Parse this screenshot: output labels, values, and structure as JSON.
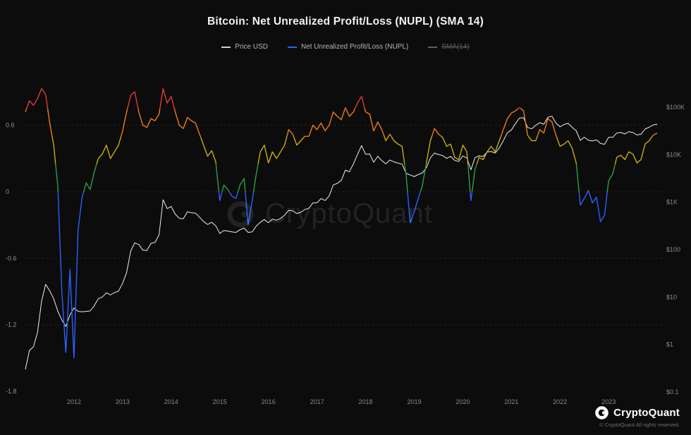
{
  "title": "Bitcoin: Net Unrealized Profit/Loss (NUPL) (SMA 14)",
  "legend": {
    "items": [
      {
        "label": "Price USD",
        "color": "#cfcfcf",
        "disabled": false
      },
      {
        "label": "Net Unrealized Profit/Loss (NUPL)",
        "color": "#2962ff",
        "disabled": false
      },
      {
        "label": "SMA(14)",
        "color": "#5f5f5f",
        "disabled": true
      }
    ]
  },
  "watermark": {
    "text": "CryptoQuant"
  },
  "brand": {
    "name": "CryptoQuant",
    "copyright": "© CryptoQuant All rights reserved."
  },
  "chart_data": {
    "type": "line",
    "title": "Bitcoin: Net Unrealized Profit/Loss (NUPL) (SMA 14)",
    "x_range": [
      2011.0,
      2024.1
    ],
    "x_ticks": [
      2012,
      2013,
      2014,
      2015,
      2016,
      2017,
      2018,
      2019,
      2020,
      2021,
      2022,
      2023
    ],
    "left_axis": {
      "range": [
        -1.8,
        1.1
      ],
      "gridlines": [
        0.6,
        0,
        -0.6,
        -1.2
      ],
      "ticks": [
        {
          "v": 0.6,
          "label": "0.6"
        },
        {
          "v": 0,
          "label": "0"
        },
        {
          "v": -0.6,
          "label": "-0.6"
        },
        {
          "v": -1.2,
          "label": "-1.2"
        },
        {
          "v": -1.8,
          "label": "-1.8"
        }
      ]
    },
    "right_axis": {
      "log": true,
      "ticks": [
        {
          "v": 100000,
          "label": "$100K"
        },
        {
          "v": 10000,
          "label": "$10K"
        },
        {
          "v": 1000,
          "label": "$1K"
        },
        {
          "v": 100,
          "label": "$100"
        },
        {
          "v": 10,
          "label": "$10"
        },
        {
          "v": 1,
          "label": "$1"
        },
        {
          "v": 0.1,
          "label": "$0.1"
        }
      ]
    },
    "series": [
      {
        "name": "Price USD",
        "axis": "right",
        "color": "#eeeeee",
        "x_start": 2011.0,
        "x_step": 0.0833333,
        "values": [
          0.3,
          0.75,
          0.9,
          1.8,
          8.2,
          18.5,
          13.5,
          9.2,
          5.0,
          3.3,
          2.4,
          4.2,
          5.9,
          5.0,
          4.9,
          5.0,
          5.1,
          6.6,
          9.2,
          10.0,
          12.3,
          11.1,
          12.4,
          13.4,
          19.5,
          33,
          93,
          139,
          128,
          97,
          96,
          135,
          141,
          204,
          1120,
          732,
          805,
          560,
          455,
          445,
          625,
          598,
          585,
          478,
          388,
          338,
          375,
          318,
          218,
          252,
          245,
          236,
          230,
          262,
          284,
          230,
          236,
          312,
          377,
          430,
          368,
          437,
          416,
          452,
          531,
          672,
          655,
          574,
          610,
          700,
          743,
          963,
          966,
          1190,
          1080,
          1350,
          2300,
          2480,
          2870,
          4700,
          4340,
          6450,
          10000,
          15500,
          10200,
          10300,
          6930,
          9240,
          7490,
          6400,
          7730,
          7030,
          6620,
          6320,
          4020,
          3740,
          3440,
          3820,
          4100,
          5320,
          8560,
          10800,
          10080,
          9590,
          8310,
          9150,
          7550,
          7190,
          9350,
          8550,
          4800,
          8620,
          9450,
          9140,
          11350,
          11650,
          10780,
          13800,
          19700,
          29000,
          33100,
          45200,
          58800,
          60000,
          37300,
          35000,
          41500,
          47100,
          43800,
          61300,
          64400,
          46200,
          38500,
          43200,
          45500,
          37650,
          31800,
          19900,
          23300,
          20050,
          19400,
          20500,
          17160,
          16550,
          23100,
          23150,
          28500,
          29250,
          27200,
          30480,
          29230,
          25930,
          26970,
          34670,
          37720,
          42280,
          43900
        ]
      },
      {
        "name": "Net Unrealized Profit/Loss (NUPL)",
        "axis": "left",
        "x_start": 2011.0,
        "x_step": 0.0833333,
        "bands": [
          {
            "min": 0.75,
            "color": "#e23b32"
          },
          {
            "min": 0.5,
            "color": "#ef7a1a"
          },
          {
            "min": 0.25,
            "color": "#c9ac0f"
          },
          {
            "min": 0,
            "color": "#2f9e44"
          },
          {
            "min": -9,
            "color": "#2962ff"
          }
        ],
        "values": [
          0.72,
          0.82,
          0.78,
          0.84,
          0.93,
          0.88,
          0.62,
          0.42,
          0.05,
          -0.9,
          -1.45,
          -0.7,
          -1.5,
          -0.35,
          -0.05,
          0.08,
          0.02,
          0.18,
          0.3,
          0.34,
          0.42,
          0.3,
          0.36,
          0.42,
          0.55,
          0.72,
          0.87,
          0.9,
          0.72,
          0.6,
          0.58,
          0.66,
          0.64,
          0.7,
          0.93,
          0.8,
          0.86,
          0.72,
          0.6,
          0.57,
          0.67,
          0.64,
          0.62,
          0.52,
          0.42,
          0.32,
          0.37,
          0.27,
          -0.08,
          0.06,
          0.02,
          -0.04,
          -0.06,
          0.06,
          0.12,
          -0.3,
          -0.08,
          0.16,
          0.36,
          0.42,
          0.26,
          0.36,
          0.3,
          0.36,
          0.42,
          0.56,
          0.52,
          0.42,
          0.46,
          0.5,
          0.5,
          0.6,
          0.56,
          0.62,
          0.55,
          0.6,
          0.72,
          0.68,
          0.65,
          0.76,
          0.68,
          0.72,
          0.8,
          0.86,
          0.72,
          0.7,
          0.55,
          0.63,
          0.56,
          0.46,
          0.52,
          0.46,
          0.43,
          0.41,
          0.15,
          -0.28,
          -0.18,
          -0.06,
          0.05,
          0.26,
          0.46,
          0.57,
          0.52,
          0.49,
          0.41,
          0.43,
          0.31,
          0.29,
          0.42,
          0.36,
          -0.08,
          0.2,
          0.31,
          0.29,
          0.36,
          0.41,
          0.36,
          0.46,
          0.56,
          0.66,
          0.71,
          0.73,
          0.76,
          0.73,
          0.51,
          0.46,
          0.46,
          0.56,
          0.53,
          0.66,
          0.63,
          0.51,
          0.41,
          0.43,
          0.46,
          0.39,
          0.26,
          -0.12,
          -0.06,
          0.01,
          -0.1,
          -0.05,
          -0.27,
          -0.21,
          0.1,
          0.16,
          0.31,
          0.33,
          0.29,
          0.36,
          0.34,
          0.26,
          0.29,
          0.43,
          0.46,
          0.51,
          0.53
        ]
      }
    ]
  }
}
